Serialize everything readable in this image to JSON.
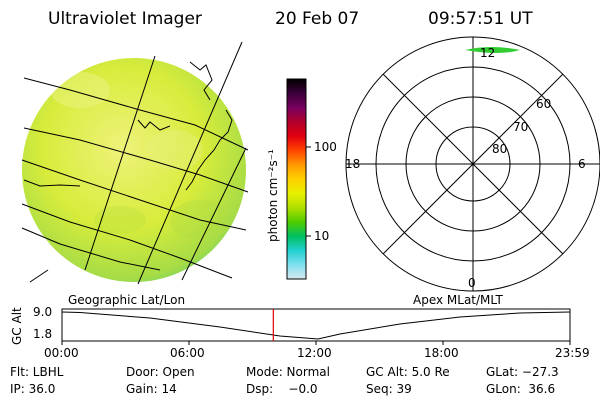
{
  "header": {
    "instrument": "Ultraviolet Imager",
    "date": "20 Feb 07",
    "time": "09:57:51 UT"
  },
  "left_panel": {
    "caption": "Geographic Lat/Lon",
    "image_colors": [
      "#d8ec3c",
      "#c4e43a",
      "#eef27a",
      "#a6dc46",
      "#6fd46a"
    ]
  },
  "colorbar": {
    "unit_label": "photon cm⁻²s⁻¹",
    "ticks": [
      "100",
      "10"
    ],
    "colors": [
      "#000000",
      "#3a003a",
      "#780060",
      "#b0002a",
      "#e20010",
      "#ff4400",
      "#ff9900",
      "#ffd000",
      "#e8f000",
      "#b0e000",
      "#50cc00",
      "#00c060",
      "#20d0d0",
      "#80e0f0",
      "#d8e8f0"
    ]
  },
  "right_panel": {
    "caption": "Apex MLat/MLT",
    "mlt_labels": {
      "top": "12",
      "left": "18",
      "right": "6",
      "bottom": "0"
    },
    "lat_labels": [
      "60",
      "70",
      "80"
    ],
    "oval_color": "#33cc33"
  },
  "timeline": {
    "axis_title": "GC Alt",
    "y_ticks": [
      "9.0",
      "1.8"
    ],
    "x_ticks": [
      "00:00",
      "06:00",
      "12:00",
      "18:00",
      "23:59"
    ],
    "current_time_fraction": 0.416,
    "marker_color": "#dd0000"
  },
  "info": {
    "filter": "Flt: LBHL",
    "door": "Door: Open",
    "mode": "Mode: Normal",
    "gc_alt": "GC Alt: 5.0 Re",
    "glat": "GLat: −27.3",
    "ip": "IP: 36.0",
    "gain": "Gain: 14",
    "dsp": "Dsp:    −0.0",
    "seq": "Seq: 39",
    "glon": "GLon:  36.6"
  }
}
